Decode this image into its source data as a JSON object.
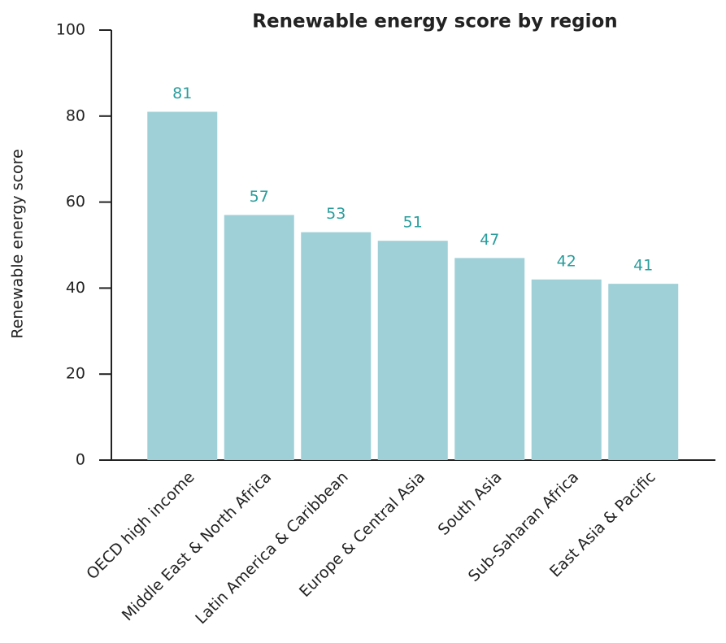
{
  "chart_data": {
    "type": "bar",
    "title": "Renewable energy score by region",
    "y_label": "Renewable energy score",
    "categories": [
      "OECD high income",
      "Middle East & North Africa",
      "Latin America & Caribbean",
      "Europe & Central Asia",
      "South Asia",
      "Sub-Saharan Africa",
      "East Asia & Pacific"
    ],
    "values": [
      81,
      57,
      53,
      51,
      47,
      42,
      41
    ],
    "color": "#9fd0d8",
    "label_color": "#2a9d9d",
    "ylim": [
      0,
      100
    ],
    "yticks": [
      0,
      20,
      40,
      60,
      80,
      100
    ],
    "grid": false
  }
}
